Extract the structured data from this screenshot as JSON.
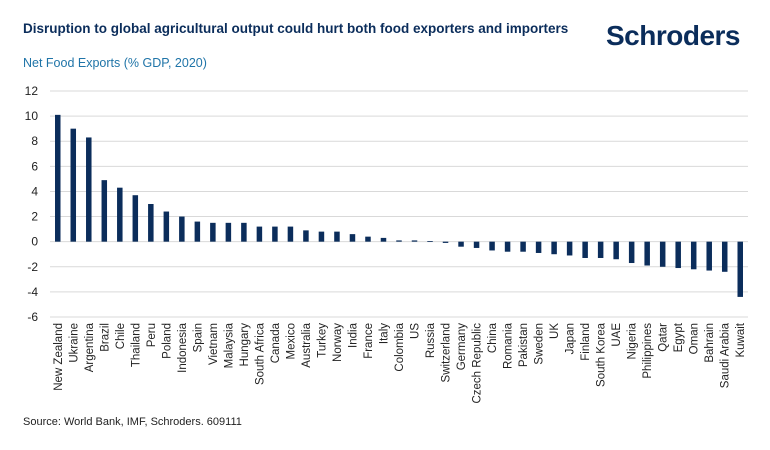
{
  "header": {
    "title": "Disruption to global agricultural output could hurt both food exporters and importers",
    "subtitle": "Net Food Exports (% GDP, 2020)",
    "brand": "Schroders"
  },
  "footer": {
    "source": "Source: World Bank, IMF, Schroders. 609111"
  },
  "colors": {
    "bar": "#0b2d5b",
    "grid": "#d9d9d9",
    "title": "#0b2d5b",
    "subtitle": "#1f74a8"
  },
  "chart_data": {
    "type": "bar",
    "title": "Net Food Exports (% GDP, 2020)",
    "xlabel": "",
    "ylabel": "",
    "ylim": [
      -6,
      12
    ],
    "yticks": [
      -6,
      -4,
      -2,
      0,
      2,
      4,
      6,
      8,
      10,
      12
    ],
    "grid": true,
    "categories": [
      "New Zealand",
      "Ukraine",
      "Argentina",
      "Brazil",
      "Chile",
      "Thailand",
      "Peru",
      "Poland",
      "Indonesia",
      "Spain",
      "Vietnam",
      "Malaysia",
      "Hungary",
      "South Africa",
      "Canada",
      "Mexico",
      "Australia",
      "Turkey",
      "Norway",
      "India",
      "France",
      "Italy",
      "Colombia",
      "US",
      "Russia",
      "Switzerland",
      "Germany",
      "Czech Republic",
      "China",
      "Romania",
      "Pakistan",
      "Sweden",
      "UK",
      "Japan",
      "Finland",
      "South Korea",
      "UAE",
      "Nigeria",
      "Philippines",
      "Qatar",
      "Egypt",
      "Oman",
      "Bahrain",
      "Saudi Arabia",
      "Kuwait"
    ],
    "values": [
      10.1,
      9.0,
      8.3,
      4.9,
      4.3,
      3.7,
      3.0,
      2.4,
      2.0,
      1.6,
      1.5,
      1.5,
      1.5,
      1.2,
      1.2,
      1.2,
      0.9,
      0.8,
      0.8,
      0.6,
      0.4,
      0.3,
      0.1,
      0.1,
      0.05,
      -0.1,
      -0.4,
      -0.5,
      -0.7,
      -0.8,
      -0.8,
      -0.9,
      -1.0,
      -1.1,
      -1.3,
      -1.3,
      -1.4,
      -1.7,
      -1.9,
      -2.0,
      -2.1,
      -2.2,
      -2.3,
      -2.4,
      -4.4
    ]
  }
}
